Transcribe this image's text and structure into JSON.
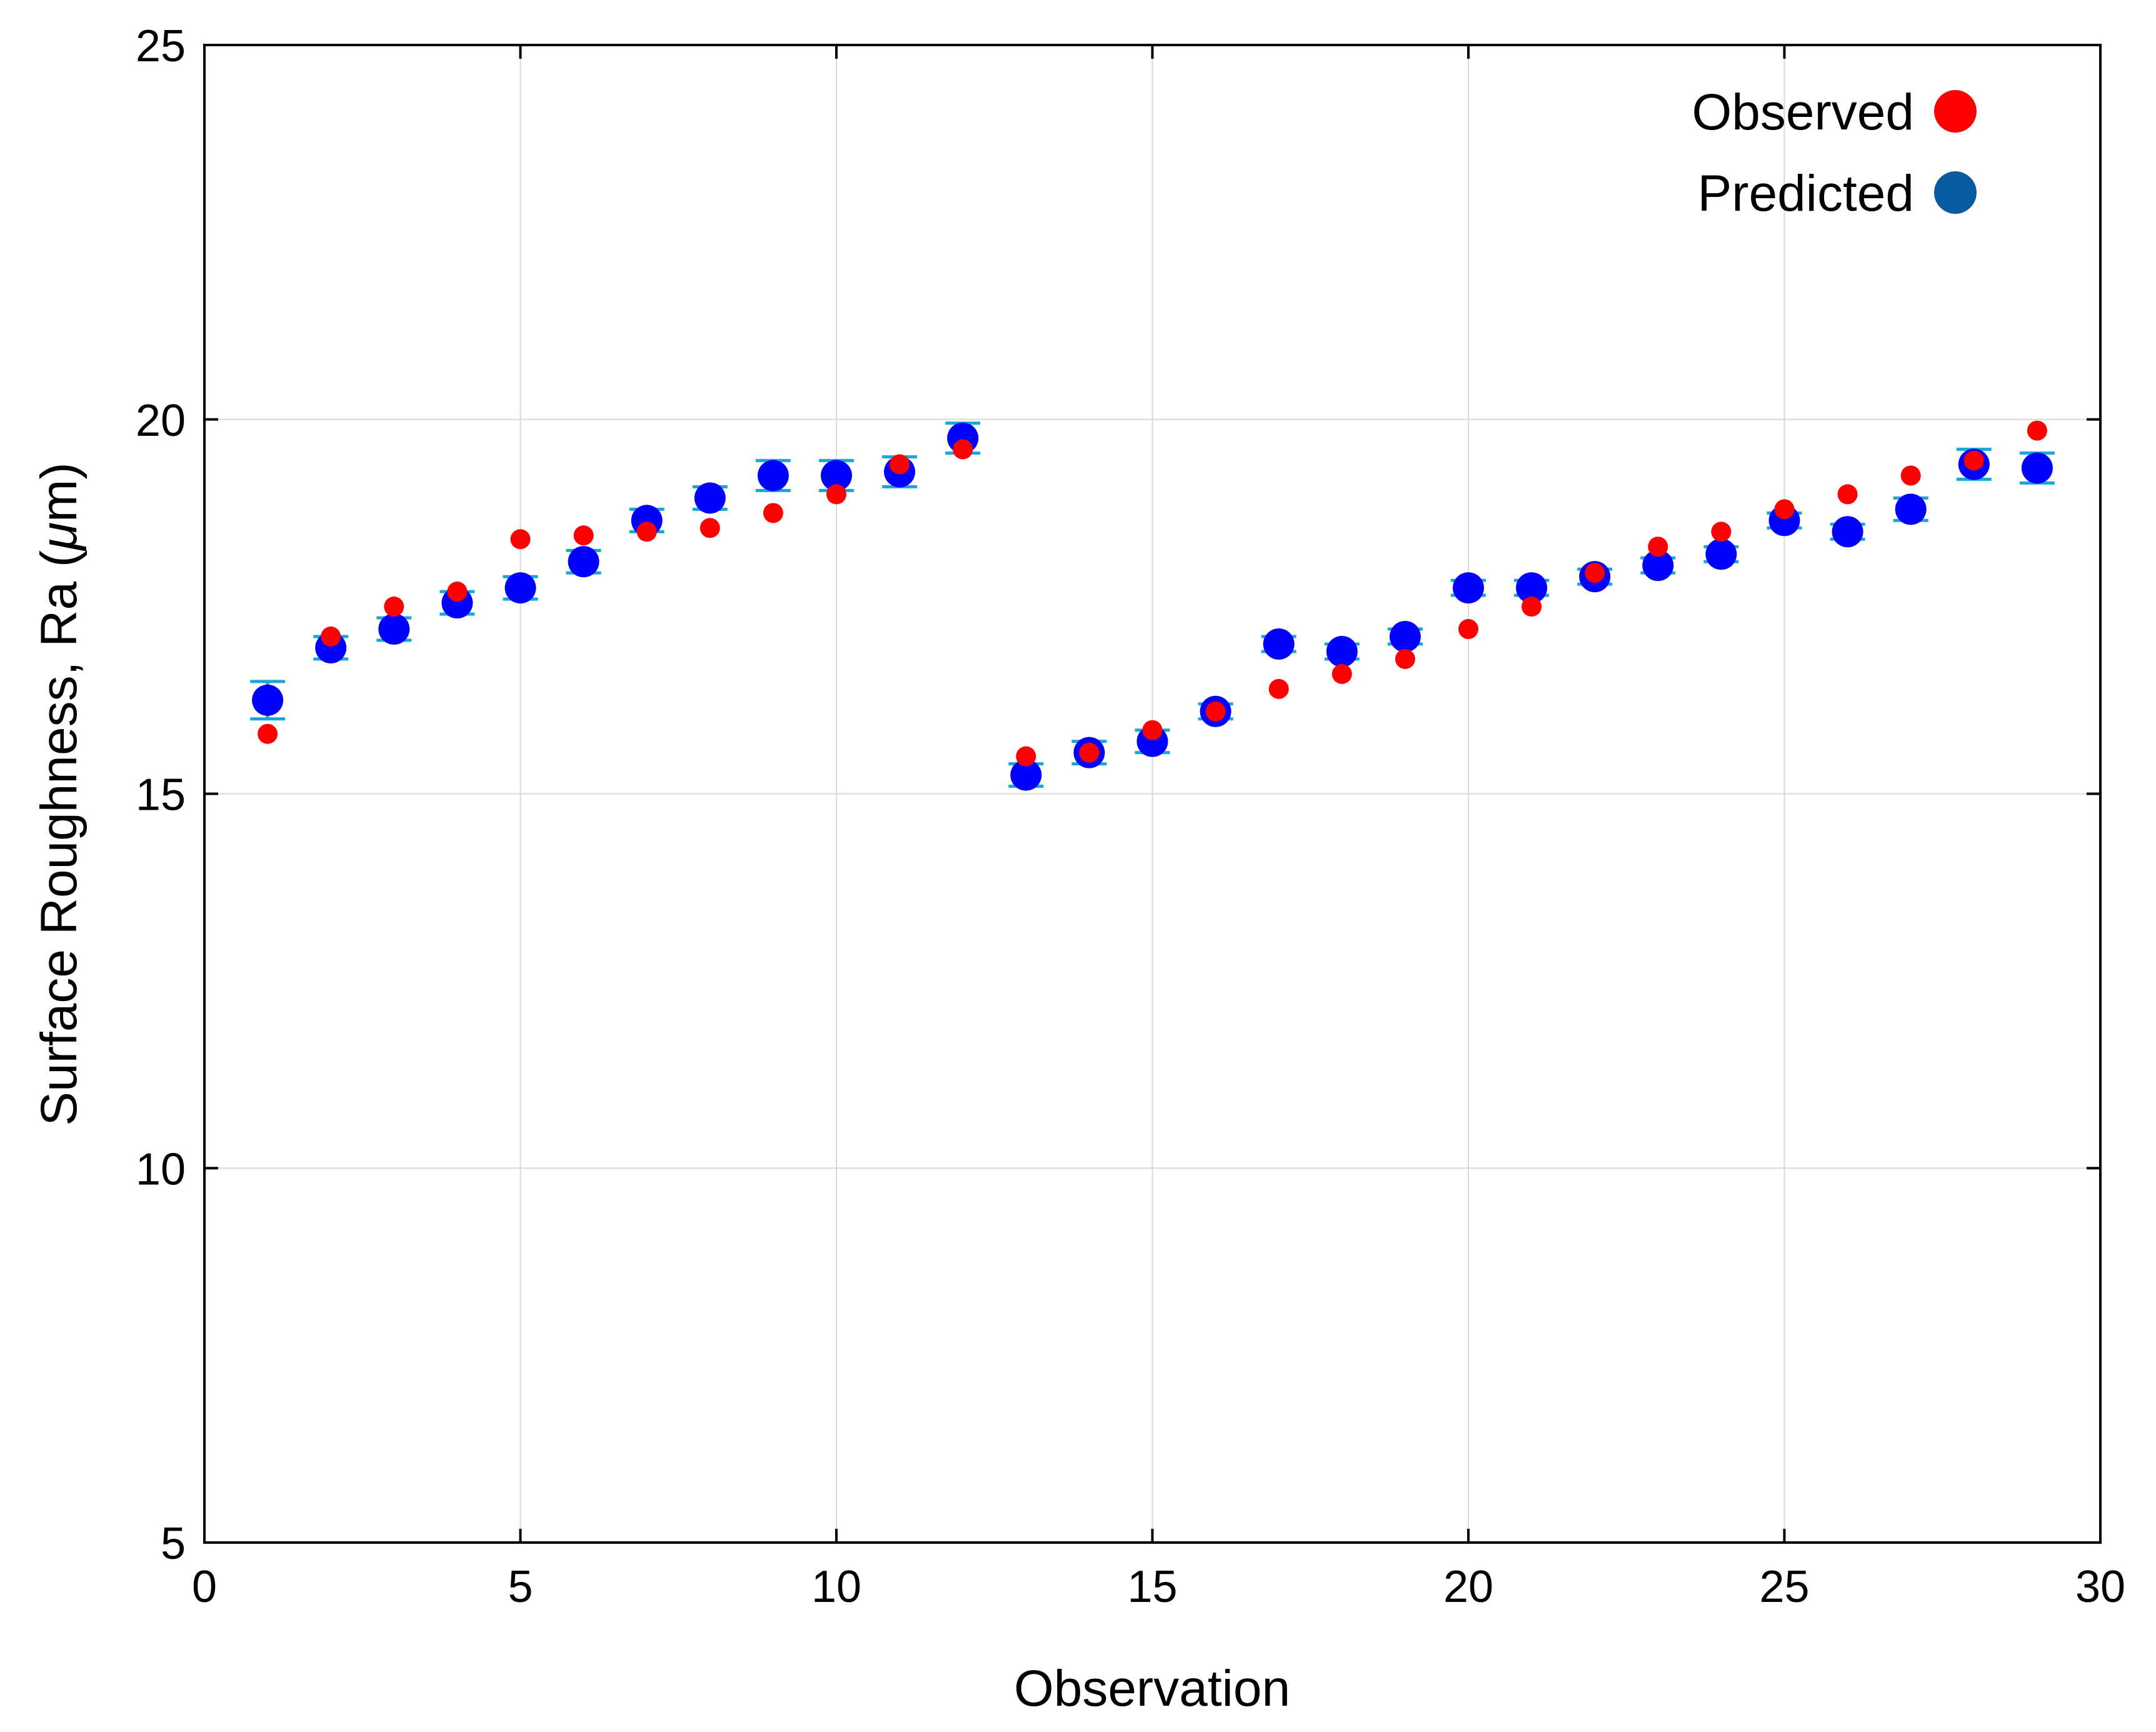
{
  "colors": {
    "observed": "#ff0000",
    "predicted": "#0000ff",
    "legend_predicted": "#0a5aa0",
    "error_bar": "#1aa6d9",
    "grid": "#d9d9d9"
  },
  "chart_data": {
    "type": "scatter",
    "title": "",
    "xlabel": "Observation",
    "ylabel_prefix": "Surface Roughness, Ra (",
    "ylabel_mu": "μ",
    "ylabel_suffix": "m)",
    "xlim": [
      0,
      30
    ],
    "ylim": [
      5,
      25
    ],
    "xticks": [
      0,
      5,
      10,
      15,
      20,
      25,
      30
    ],
    "yticks": [
      5,
      10,
      15,
      20,
      25
    ],
    "xtick_labels": [
      "0",
      "5",
      "10",
      "15",
      "20",
      "25",
      "30"
    ],
    "ytick_labels": [
      "5",
      "10",
      "15",
      "20",
      "25"
    ],
    "grid": true,
    "legend_position": "top-right",
    "x": [
      1,
      2,
      3,
      4,
      5,
      6,
      7,
      8,
      9,
      10,
      11,
      12,
      13,
      14,
      15,
      16,
      17,
      18,
      19,
      20,
      21,
      22,
      23,
      24,
      25,
      26,
      27,
      28,
      29
    ],
    "series": [
      {
        "name": "Observed",
        "values": [
          15.8,
          17.1,
          17.5,
          17.7,
          18.4,
          18.45,
          18.5,
          18.55,
          18.75,
          19.0,
          19.4,
          19.6,
          15.5,
          15.55,
          15.85,
          16.1,
          16.4,
          16.6,
          16.8,
          17.2,
          17.5,
          17.95,
          18.3,
          18.5,
          18.8,
          19.0,
          19.25,
          19.45,
          19.85
        ]
      },
      {
        "name": "Predicted",
        "values": [
          16.25,
          16.95,
          17.2,
          17.55,
          17.75,
          18.1,
          18.65,
          18.95,
          19.25,
          19.25,
          19.3,
          19.75,
          15.25,
          15.55,
          15.7,
          16.1,
          17.0,
          16.9,
          17.1,
          17.75,
          17.75,
          17.9,
          18.05,
          18.2,
          18.65,
          18.5,
          18.8,
          19.4,
          19.35
        ],
        "error": [
          0.25,
          0.15,
          0.15,
          0.15,
          0.15,
          0.15,
          0.15,
          0.15,
          0.2,
          0.2,
          0.2,
          0.2,
          0.15,
          0.15,
          0.15,
          0.1,
          0.1,
          0.1,
          0.1,
          0.1,
          0.1,
          0.1,
          0.1,
          0.1,
          0.1,
          0.1,
          0.15,
          0.2,
          0.2
        ]
      }
    ]
  }
}
